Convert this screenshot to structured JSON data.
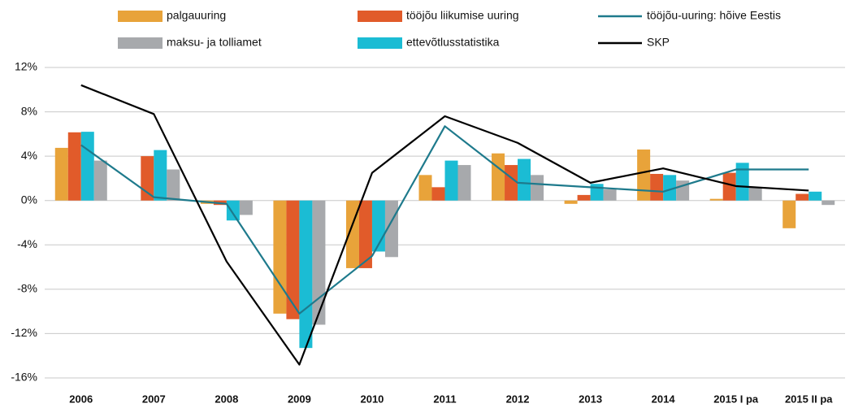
{
  "chart_data": {
    "type": "bar",
    "categories": [
      "2006",
      "2007",
      "2008",
      "2009",
      "2010",
      "2011",
      "2012",
      "2013",
      "2014",
      "2015 I pa",
      "2015 II pa"
    ],
    "series": [
      {
        "name": "palgauuring",
        "color": "#e8a33a",
        "values": [
          4.75,
          null,
          -0.3,
          -10.2,
          -6.1,
          2.3,
          4.25,
          -0.3,
          4.6,
          0.15,
          -2.5
        ]
      },
      {
        "name": "tööjõu liikumise uuring",
        "color": "#e15b2a",
        "values": [
          6.15,
          4.0,
          -0.4,
          -10.7,
          -6.1,
          1.2,
          3.2,
          0.5,
          2.4,
          2.5,
          0.6
        ]
      },
      {
        "name": "ettevõtlusstatistika",
        "color": "#1bbcd4",
        "values": [
          6.2,
          4.55,
          -1.8,
          -13.3,
          -4.6,
          3.6,
          3.75,
          1.5,
          2.3,
          3.4,
          0.8
        ]
      },
      {
        "name": "maksu- ja tolliamet",
        "color": "#a7a9ac",
        "values": [
          3.6,
          2.8,
          -1.3,
          -11.2,
          -5.1,
          3.2,
          2.3,
          1.0,
          1.8,
          1.2,
          -0.4
        ]
      },
      {
        "name": "tööjõu-uuring: hõive Eestis",
        "color": "#1e7a8c",
        "type": "line",
        "values": [
          5.0,
          0.3,
          -0.3,
          -10.2,
          -5.0,
          6.7,
          1.6,
          1.2,
          0.8,
          2.8,
          2.8
        ]
      },
      {
        "name": "SKP",
        "color": "#000000",
        "type": "line",
        "values": [
          10.4,
          7.8,
          -5.5,
          -14.8,
          2.5,
          7.6,
          5.2,
          1.6,
          2.9,
          1.3,
          0.9
        ]
      }
    ],
    "ylim": [
      -16,
      12
    ],
    "yticks": [
      {
        "value": -16,
        "label": "-16%"
      },
      {
        "value": -12,
        "label": "-12%"
      },
      {
        "value": -8,
        "label": "-8%"
      },
      {
        "value": -4,
        "label": "-4%"
      },
      {
        "value": 0,
        "label": "0%"
      },
      {
        "value": 4,
        "label": "4%"
      },
      {
        "value": 8,
        "label": "8%"
      },
      {
        "value": 12,
        "label": "12%"
      }
    ],
    "grid": true
  }
}
